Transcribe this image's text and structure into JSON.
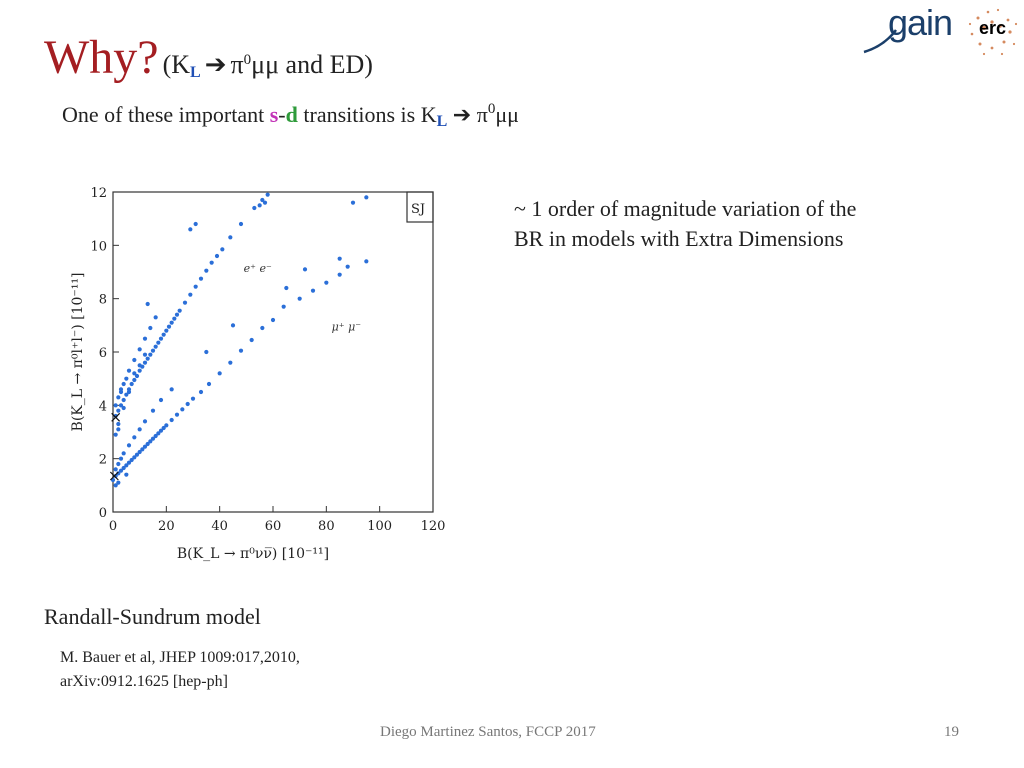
{
  "slide": {
    "title_main": "Why?",
    "title_paren_open": "(K",
    "title_sub": "L",
    "title_arrow": "➔",
    "title_pi": "π",
    "title_sup": "0",
    "title_rest": "μμ and ED)",
    "subtitle_pre": "One of these important ",
    "subtitle_s": "s",
    "subtitle_dash": "-",
    "subtitle_d": "d",
    "subtitle_mid": " transitions is K",
    "subtitle_sub": "L",
    "subtitle_arrow": "➔",
    "subtitle_pi": "π",
    "subtitle_sup": "0",
    "subtitle_end": "μμ",
    "note_line1": "~ 1 order of magnitude variation of the",
    "note_line2": "BR in models with Extra Dimensions",
    "model_label": "Randall-Sundrum model",
    "ref_line1": "M. Bauer et al, JHEP 1009:017,2010,",
    "ref_line2": "arXiv:0912.1625 [hep-ph]",
    "footer": "Diego Martinez Santos, FCCP 2017",
    "page_number": "19"
  },
  "logo": {
    "gain_text": "gain",
    "erc_text": "erc",
    "colors": {
      "gain": "#1b3f6a",
      "erc_dots": "#c8632a"
    }
  },
  "chart_data": {
    "type": "scatter",
    "xlabel": "B(K_L → π⁰νν̅) [10⁻¹¹]",
    "ylabel": "B(K_L → π⁰l⁺l⁻) [10⁻¹¹]",
    "xlim": [
      0,
      120
    ],
    "ylim": [
      0,
      12
    ],
    "xticks": [
      0,
      20,
      40,
      60,
      80,
      100,
      120
    ],
    "yticks": [
      0,
      2,
      4,
      6,
      8,
      10,
      12
    ],
    "legend_box": "SJ",
    "marker_color": "#2b6fd8",
    "series": [
      {
        "name": "e⁺ e⁻",
        "points": [
          [
            1,
            3.6
          ],
          [
            2,
            3.8
          ],
          [
            3,
            4.0
          ],
          [
            4,
            4.2
          ],
          [
            5,
            4.4
          ],
          [
            6,
            4.6
          ],
          [
            7,
            4.8
          ],
          [
            8,
            4.95
          ],
          [
            9,
            5.1
          ],
          [
            10,
            5.3
          ],
          [
            11,
            5.45
          ],
          [
            12,
            5.6
          ],
          [
            13,
            5.75
          ],
          [
            14,
            5.9
          ],
          [
            15,
            6.05
          ],
          [
            16,
            6.2
          ],
          [
            17,
            6.35
          ],
          [
            18,
            6.5
          ],
          [
            19,
            6.65
          ],
          [
            20,
            6.8
          ],
          [
            21,
            6.95
          ],
          [
            22,
            7.1
          ],
          [
            23,
            7.25
          ],
          [
            24,
            7.4
          ],
          [
            25,
            7.55
          ],
          [
            27,
            7.85
          ],
          [
            29,
            8.15
          ],
          [
            31,
            8.45
          ],
          [
            33,
            8.75
          ],
          [
            35,
            9.05
          ],
          [
            37,
            9.35
          ],
          [
            39,
            9.6
          ],
          [
            41,
            9.85
          ],
          [
            44,
            10.3
          ],
          [
            48,
            10.8
          ],
          [
            53,
            11.4
          ],
          [
            56,
            11.7
          ],
          [
            58,
            11.9
          ],
          [
            1,
            4.0
          ],
          [
            2,
            4.3
          ],
          [
            3,
            4.5
          ],
          [
            4,
            4.8
          ],
          [
            5,
            5.0
          ],
          [
            6,
            5.3
          ],
          [
            8,
            5.7
          ],
          [
            10,
            6.1
          ],
          [
            12,
            6.5
          ],
          [
            14,
            6.9
          ],
          [
            16,
            7.3
          ],
          [
            29,
            10.6
          ],
          [
            31,
            10.8
          ],
          [
            55,
            11.5
          ],
          [
            57,
            11.6
          ],
          [
            2,
            3.3
          ],
          [
            4,
            3.9
          ],
          [
            6,
            4.5
          ],
          [
            8,
            5.2
          ],
          [
            10,
            5.5
          ],
          [
            12,
            5.9
          ],
          [
            13,
            7.8
          ],
          [
            3,
            4.6
          ],
          [
            1,
            2.9
          ],
          [
            2,
            3.1
          ]
        ]
      },
      {
        "name": "μ⁺ μ⁻",
        "points": [
          [
            0,
            1.2
          ],
          [
            1,
            1.35
          ],
          [
            2,
            1.45
          ],
          [
            3,
            1.55
          ],
          [
            4,
            1.65
          ],
          [
            5,
            1.75
          ],
          [
            6,
            1.85
          ],
          [
            7,
            1.95
          ],
          [
            8,
            2.05
          ],
          [
            9,
            2.15
          ],
          [
            10,
            2.25
          ],
          [
            11,
            2.35
          ],
          [
            12,
            2.45
          ],
          [
            13,
            2.55
          ],
          [
            14,
            2.65
          ],
          [
            15,
            2.75
          ],
          [
            16,
            2.85
          ],
          [
            17,
            2.95
          ],
          [
            18,
            3.05
          ],
          [
            19,
            3.15
          ],
          [
            20,
            3.25
          ],
          [
            22,
            3.45
          ],
          [
            24,
            3.65
          ],
          [
            26,
            3.85
          ],
          [
            28,
            4.05
          ],
          [
            30,
            4.25
          ],
          [
            33,
            4.5
          ],
          [
            36,
            4.8
          ],
          [
            40,
            5.2
          ],
          [
            44,
            5.6
          ],
          [
            48,
            6.05
          ],
          [
            52,
            6.45
          ],
          [
            56,
            6.9
          ],
          [
            60,
            7.2
          ],
          [
            64,
            7.7
          ],
          [
            70,
            8.0
          ],
          [
            75,
            8.3
          ],
          [
            80,
            8.6
          ],
          [
            85,
            8.9
          ],
          [
            88,
            9.2
          ],
          [
            95,
            9.4
          ],
          [
            1,
            1.6
          ],
          [
            2,
            1.8
          ],
          [
            3,
            2.0
          ],
          [
            4,
            2.2
          ],
          [
            6,
            2.5
          ],
          [
            8,
            2.8
          ],
          [
            10,
            3.1
          ],
          [
            12,
            3.4
          ],
          [
            15,
            3.8
          ],
          [
            18,
            4.2
          ],
          [
            22,
            4.6
          ],
          [
            35,
            6.0
          ],
          [
            45,
            7.0
          ],
          [
            65,
            8.4
          ],
          [
            90,
            11.6
          ],
          [
            95,
            11.8
          ],
          [
            72,
            9.1
          ],
          [
            85,
            9.5
          ],
          [
            2,
            1.1
          ],
          [
            5,
            1.4
          ],
          [
            1,
            1.0
          ]
        ]
      }
    ]
  }
}
